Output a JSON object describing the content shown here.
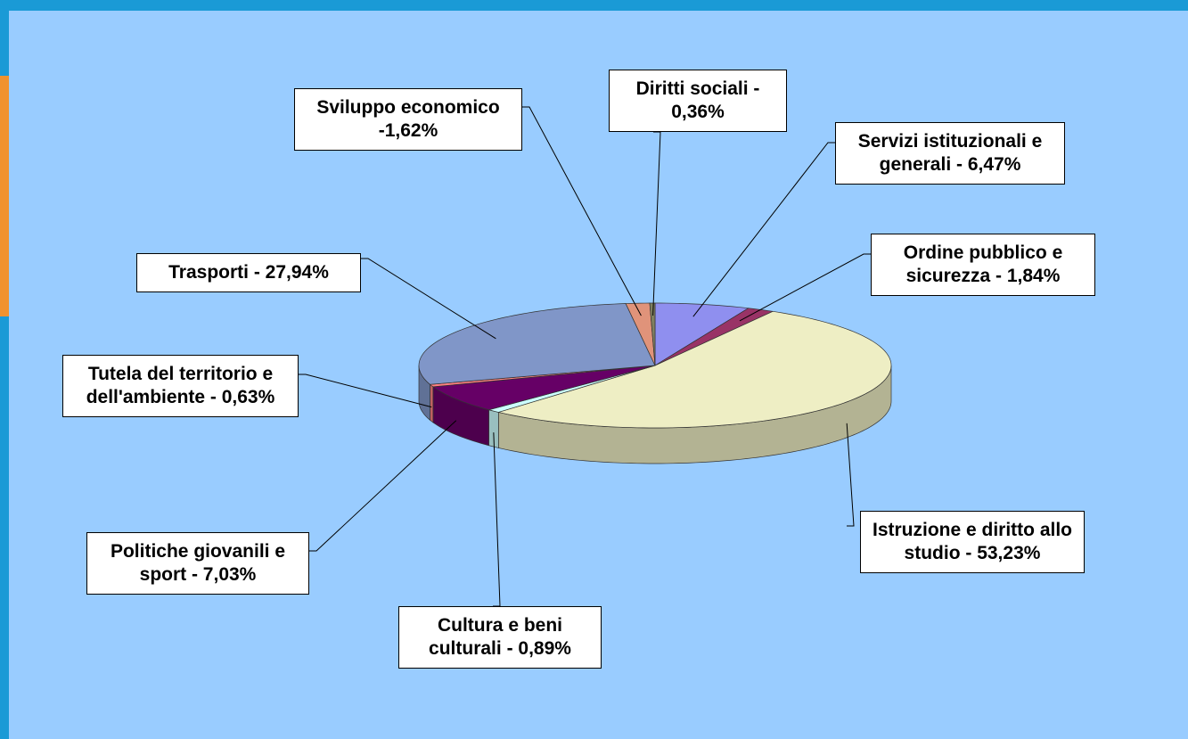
{
  "chart_data": {
    "type": "pie3d",
    "value_labels": [
      "Servizi istituzionali e generali - 6,47%",
      "Ordine pubblico e sicurezza - 1,84%",
      "Istruzione e diritto allo studio - 53,23%",
      "Cultura e beni culturali - 0,89%",
      "Politiche giovanili e sport - 7,03%",
      "Tutela del territorio e dell'ambiente - 0,63%",
      "Trasporti - 27,94%",
      "Sviluppo economico -1,62%",
      "Diritti sociali - 0,36%"
    ],
    "values": [
      6.47,
      1.84,
      53.23,
      0.89,
      7.03,
      0.63,
      27.94,
      1.62,
      0.36
    ],
    "colors": [
      "#8f8fef",
      "#993366",
      "#eeeec4",
      "#ccffff",
      "#660066",
      "#ff8080",
      "#8096c8",
      "#e0937a",
      "#808060"
    ]
  }
}
